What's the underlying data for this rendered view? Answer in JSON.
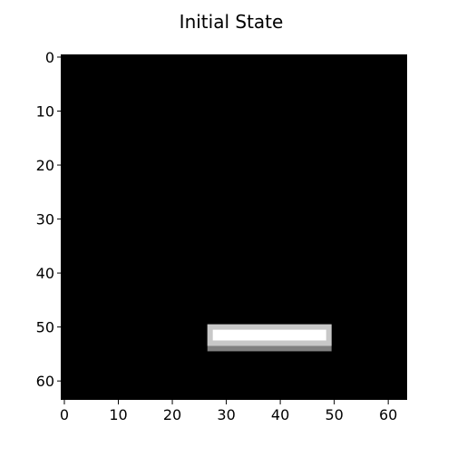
{
  "chart_data": {
    "type": "heatmap",
    "title": "Initial State",
    "grid_size": [
      64,
      64
    ],
    "xlim": [
      -0.5,
      63.5
    ],
    "ylim": [
      63.5,
      -0.5
    ],
    "x_ticks": [
      0,
      10,
      20,
      30,
      40,
      50,
      60
    ],
    "y_ticks": [
      0,
      10,
      20,
      30,
      40,
      50,
      60
    ],
    "background_color": "#000000",
    "grid": false,
    "blocks": [
      {
        "name": "paddle-shadow",
        "color": "#808080",
        "cols": [
          27,
          49
        ],
        "rows": [
          50,
          54
        ]
      },
      {
        "name": "paddle-border",
        "color": "#c8c8c8",
        "cols": [
          27,
          49
        ],
        "rows": [
          50,
          53
        ]
      },
      {
        "name": "paddle-top",
        "color": "#ffffff",
        "cols": [
          28,
          48
        ],
        "rows": [
          51,
          52
        ]
      }
    ]
  }
}
